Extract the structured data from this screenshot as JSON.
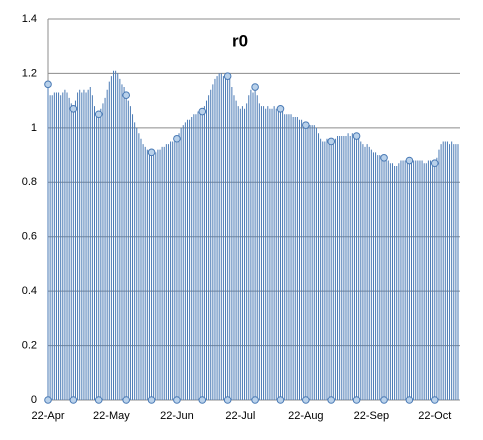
{
  "chart_data": {
    "type": "dropline",
    "title": "r0",
    "color": "#4a7ab5",
    "grid": true,
    "ylim": [
      0,
      1.4
    ],
    "yticks": [
      0,
      0.2,
      0.4,
      0.6,
      0.8,
      1,
      1.2,
      1.4
    ],
    "categories": [
      "22-Apr",
      null,
      null,
      null,
      null,
      null,
      null,
      null,
      null,
      null,
      null,
      null,
      null,
      null,
      null,
      null,
      null,
      null,
      null,
      null,
      null,
      null,
      null,
      null,
      null,
      null,
      null,
      null,
      null,
      null,
      "22-May",
      null,
      null,
      null,
      null,
      null,
      null,
      null,
      null,
      null,
      null,
      null,
      null,
      null,
      null,
      null,
      null,
      null,
      null,
      null,
      null,
      null,
      null,
      null,
      null,
      null,
      null,
      null,
      null,
      null,
      null,
      "22-Jun",
      null,
      null,
      null,
      null,
      null,
      null,
      null,
      null,
      null,
      null,
      null,
      null,
      null,
      null,
      null,
      null,
      null,
      null,
      null,
      null,
      null,
      null,
      null,
      null,
      null,
      null,
      null,
      null,
      null,
      "22-Jul",
      null,
      null,
      null,
      null,
      null,
      null,
      null,
      null,
      null,
      null,
      null,
      null,
      null,
      null,
      null,
      null,
      null,
      null,
      null,
      null,
      null,
      null,
      null,
      null,
      null,
      null,
      null,
      null,
      null,
      null,
      "22-Aug",
      null,
      null,
      null,
      null,
      null,
      null,
      null,
      null,
      null,
      null,
      null,
      null,
      null,
      null,
      null,
      null,
      null,
      null,
      null,
      null,
      null,
      null,
      null,
      null,
      null,
      null,
      null,
      null,
      null,
      null,
      "22-Sep",
      null,
      null,
      null,
      null,
      null,
      null,
      null,
      null,
      null,
      null,
      null,
      null,
      null,
      null,
      null,
      null,
      null,
      null,
      null,
      null,
      null,
      null,
      null,
      null,
      null,
      null,
      null,
      null,
      null,
      "22-Oct",
      null,
      null,
      null,
      null,
      null,
      null,
      null,
      null,
      null,
      null,
      null
    ],
    "values": [
      1.16,
      1.12,
      1.12,
      1.13,
      1.13,
      1.13,
      1.12,
      1.13,
      1.14,
      1.13,
      1.11,
      1.09,
      1.07,
      1.1,
      1.13,
      1.14,
      1.13,
      1.14,
      1.13,
      1.14,
      1.15,
      1.12,
      1.08,
      1.06,
      1.05,
      1.07,
      1.09,
      1.11,
      1.14,
      1.17,
      1.19,
      1.21,
      1.21,
      1.2,
      1.18,
      1.16,
      1.15,
      1.12,
      1.1,
      1.08,
      1.05,
      1.02,
      1.0,
      0.98,
      0.96,
      0.94,
      0.93,
      0.92,
      0.91,
      0.91,
      0.9,
      0.91,
      0.92,
      0.92,
      0.93,
      0.93,
      0.94,
      0.94,
      0.95,
      0.95,
      0.96,
      0.96,
      0.98,
      1.0,
      1.01,
      1.02,
      1.03,
      1.03,
      1.04,
      1.05,
      1.05,
      1.06,
      1.06,
      1.06,
      1.08,
      1.1,
      1.12,
      1.14,
      1.16,
      1.18,
      1.19,
      1.2,
      1.2,
      1.19,
      1.18,
      1.19,
      1.18,
      1.15,
      1.12,
      1.1,
      1.08,
      1.07,
      1.08,
      1.07,
      1.09,
      1.12,
      1.14,
      1.13,
      1.15,
      1.12,
      1.09,
      1.08,
      1.08,
      1.07,
      1.08,
      1.07,
      1.07,
      1.08,
      1.07,
      1.07,
      1.07,
      1.06,
      1.05,
      1.05,
      1.05,
      1.05,
      1.04,
      1.04,
      1.04,
      1.03,
      1.03,
      1.02,
      1.01,
      1.02,
      1.01,
      1.01,
      1.01,
      1.0,
      0.98,
      0.96,
      0.95,
      0.95,
      0.96,
      0.96,
      0.95,
      0.95,
      0.96,
      0.97,
      0.97,
      0.97,
      0.97,
      0.97,
      0.98,
      0.97,
      0.98,
      0.98,
      0.97,
      0.98,
      0.95,
      0.94,
      0.93,
      0.94,
      0.93,
      0.92,
      0.91,
      0.91,
      0.9,
      0.9,
      0.89,
      0.89,
      0.89,
      0.88,
      0.87,
      0.87,
      0.86,
      0.86,
      0.87,
      0.88,
      0.88,
      0.88,
      0.88,
      0.88,
      0.88,
      0.88,
      0.88,
      0.88,
      0.88,
      0.88,
      0.87,
      0.87,
      0.88,
      0.88,
      0.87,
      0.87,
      0.89,
      0.92,
      0.94,
      0.95,
      0.95,
      0.95,
      0.94,
      0.95,
      0.94,
      0.94,
      0.94
    ]
  }
}
